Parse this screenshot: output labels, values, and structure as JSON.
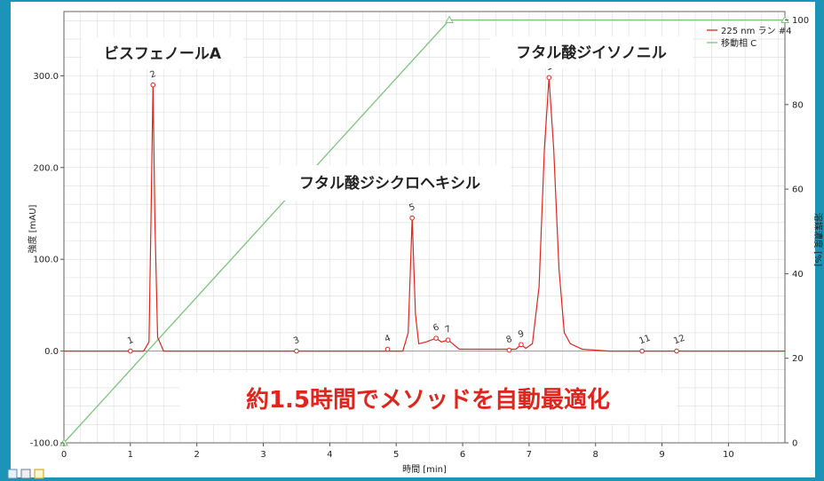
{
  "colors": {
    "frame": "#1b94b8",
    "signal": "#e0261c",
    "gradient": "#7cc47c",
    "grid": "#dcdcdc",
    "banner_text": "#e0261c"
  },
  "chart_data": {
    "type": "line",
    "xlabel": "時間 [min]",
    "ylabel_left": "強度 [mAU]",
    "ylabel_right": "溶媒濃度 [%]",
    "xlim": [
      0,
      10.85
    ],
    "ylim_left": [
      -100,
      370
    ],
    "ylim_right": [
      0,
      102
    ],
    "x_ticks": [
      "0",
      "1",
      "2",
      "3",
      "4",
      "5",
      "6",
      "7",
      "8",
      "9",
      "10"
    ],
    "y_left_ticks": [
      "-100.0",
      "0.0",
      "100.0",
      "200.0",
      "300.0"
    ],
    "y_right_ticks": [
      "0",
      "20",
      "40",
      "60",
      "80",
      "100"
    ],
    "grid": true,
    "legend": {
      "position": "top-right",
      "entries": [
        "225 nm ラン #4",
        "移動相 C"
      ]
    },
    "series": [
      {
        "name": "225 nm ラン #4",
        "axis": "left",
        "color": "#e0261c",
        "points": [
          [
            0,
            0
          ],
          [
            1.2,
            0
          ],
          [
            1.28,
            10
          ],
          [
            1.31,
            140
          ],
          [
            1.34,
            290
          ],
          [
            1.37,
            140
          ],
          [
            1.41,
            15
          ],
          [
            1.5,
            0
          ],
          [
            5.1,
            0
          ],
          [
            5.18,
            20
          ],
          [
            5.24,
            145
          ],
          [
            5.29,
            40
          ],
          [
            5.34,
            8
          ],
          [
            5.45,
            10
          ],
          [
            5.6,
            14
          ],
          [
            5.68,
            10
          ],
          [
            5.78,
            12
          ],
          [
            5.85,
            8
          ],
          [
            5.95,
            2
          ],
          [
            6.8,
            2
          ],
          [
            6.88,
            7
          ],
          [
            6.95,
            3
          ],
          [
            7.05,
            8
          ],
          [
            7.15,
            70
          ],
          [
            7.23,
            220
          ],
          [
            7.3,
            298
          ],
          [
            7.37,
            220
          ],
          [
            7.45,
            90
          ],
          [
            7.53,
            20
          ],
          [
            7.62,
            8
          ],
          [
            7.8,
            2
          ],
          [
            8.2,
            0
          ],
          [
            10.85,
            0
          ]
        ]
      },
      {
        "name": "移動相 C",
        "axis": "right",
        "color": "#7cc47c",
        "points": [
          [
            0,
            0
          ],
          [
            5.8,
            100
          ],
          [
            10.85,
            100
          ]
        ]
      }
    ],
    "peaks": [
      {
        "label": "1",
        "x": 1.0,
        "y": 0
      },
      {
        "label": "2",
        "x": 1.34,
        "y": 290
      },
      {
        "label": "3",
        "x": 3.5,
        "y": 0
      },
      {
        "label": "4",
        "x": 4.87,
        "y": 2
      },
      {
        "label": "5",
        "x": 5.24,
        "y": 145
      },
      {
        "label": "6",
        "x": 5.6,
        "y": 14
      },
      {
        "label": "7",
        "x": 5.78,
        "y": 12
      },
      {
        "label": "8",
        "x": 6.7,
        "y": 1
      },
      {
        "label": "9",
        "x": 6.88,
        "y": 7
      },
      {
        "label": "10",
        "x": 7.3,
        "y": 298
      },
      {
        "label": "11",
        "x": 8.7,
        "y": 0
      },
      {
        "label": "12",
        "x": 9.22,
        "y": 0
      }
    ],
    "annotations": [
      "ビスフェノールA",
      "フタル酸ジシクロヘキシル",
      "フタル酸ジイソノニル"
    ],
    "banner": "約1.5時間でメソッドを自動最適化"
  }
}
